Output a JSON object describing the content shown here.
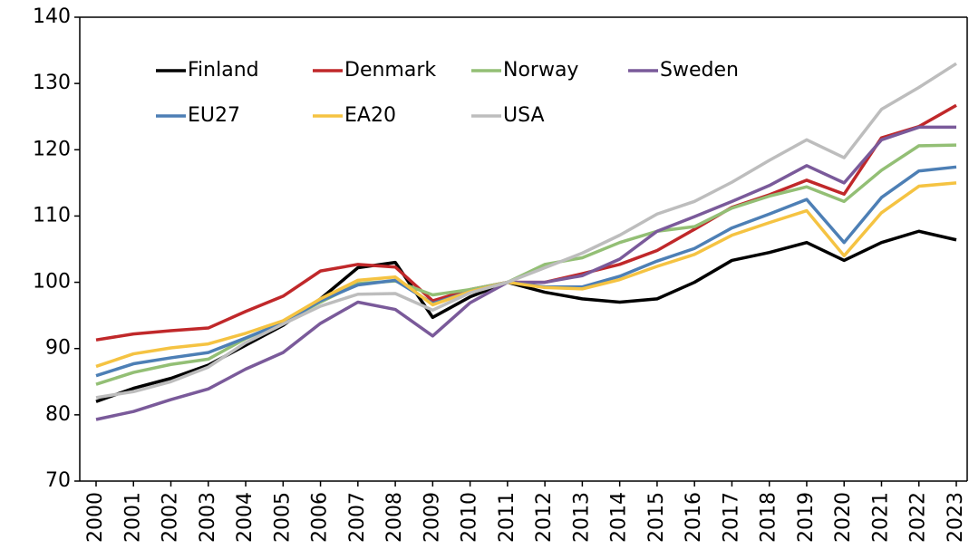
{
  "chart_data": {
    "type": "line",
    "categories": [
      "2000",
      "2001",
      "2002",
      "2003",
      "2004",
      "2005",
      "2006",
      "2007",
      "2008",
      "2009",
      "2010",
      "2011",
      "2012",
      "2013",
      "2014",
      "2015",
      "2016",
      "2017",
      "2018",
      "2019",
      "2020",
      "2021",
      "2022",
      "2023"
    ],
    "series": [
      {
        "name": "Finland",
        "color": "#000000",
        "values": [
          82,
          84,
          85.5,
          87.5,
          90.5,
          93.5,
          97.5,
          102.2,
          103,
          94.7,
          97.8,
          100,
          98.5,
          97.5,
          97,
          97.5,
          100,
          103.3,
          104.5,
          106,
          103.3,
          106,
          107.7,
          106.4
        ]
      },
      {
        "name": "Denmark",
        "color": "#c0282a",
        "values": [
          91.3,
          92.2,
          92.7,
          93.1,
          95.6,
          97.9,
          101.7,
          102.7,
          102.3,
          97.2,
          98.9,
          100,
          100,
          101.3,
          102.7,
          104.8,
          108,
          111.3,
          113.2,
          115.4,
          113.3,
          121.8,
          123.5,
          126.7
        ]
      },
      {
        "name": "Norway",
        "color": "#93bf75",
        "values": [
          84.6,
          86.4,
          87.6,
          88.4,
          91.5,
          94,
          97,
          99.8,
          100.2,
          98.1,
          98.9,
          100,
          102.7,
          103.7,
          106,
          107.7,
          108.4,
          111.2,
          113,
          114.4,
          112.2,
          116.9,
          120.6,
          120.7
        ]
      },
      {
        "name": "Sweden",
        "color": "#7a5a9a",
        "values": [
          79.3,
          80.5,
          82.3,
          83.9,
          86.9,
          89.4,
          93.8,
          97,
          95.9,
          91.9,
          96.9,
          100,
          100,
          101,
          103.5,
          107.7,
          109.9,
          112.2,
          114.6,
          117.6,
          115,
          121.5,
          123.4,
          123.4
        ]
      },
      {
        "name": "EU27",
        "color": "#4d7fb5",
        "values": [
          85.9,
          87.7,
          88.6,
          89.4,
          91.6,
          93.9,
          97.2,
          99.6,
          100.3,
          96.8,
          98.6,
          100,
          99.3,
          99.3,
          100.9,
          103.2,
          105.1,
          108.2,
          110.3,
          112.5,
          106,
          112.8,
          116.8,
          117.4
        ]
      },
      {
        "name": "EA20",
        "color": "#f5c342",
        "values": [
          87.3,
          89.2,
          90.1,
          90.7,
          92.3,
          94.2,
          97.5,
          100.3,
          100.8,
          96.6,
          98.6,
          100,
          99.2,
          99,
          100.4,
          102.4,
          104.2,
          107.1,
          109,
          110.8,
          104,
          110.5,
          114.5,
          115
        ]
      },
      {
        "name": "USA",
        "color": "#bdbdbd",
        "values": [
          82.6,
          83.5,
          85,
          87.2,
          90.9,
          93.7,
          96.4,
          98.2,
          98.3,
          95.8,
          98.4,
          100,
          102.2,
          104.4,
          107.1,
          110.3,
          112.2,
          115.1,
          118.4,
          121.5,
          118.8,
          126.1,
          129.4,
          133
        ]
      }
    ],
    "ylim": [
      70,
      140
    ],
    "yticks": [
      70,
      80,
      90,
      100,
      110,
      120,
      130,
      140
    ],
    "grid": false,
    "legend": "upper left"
  }
}
